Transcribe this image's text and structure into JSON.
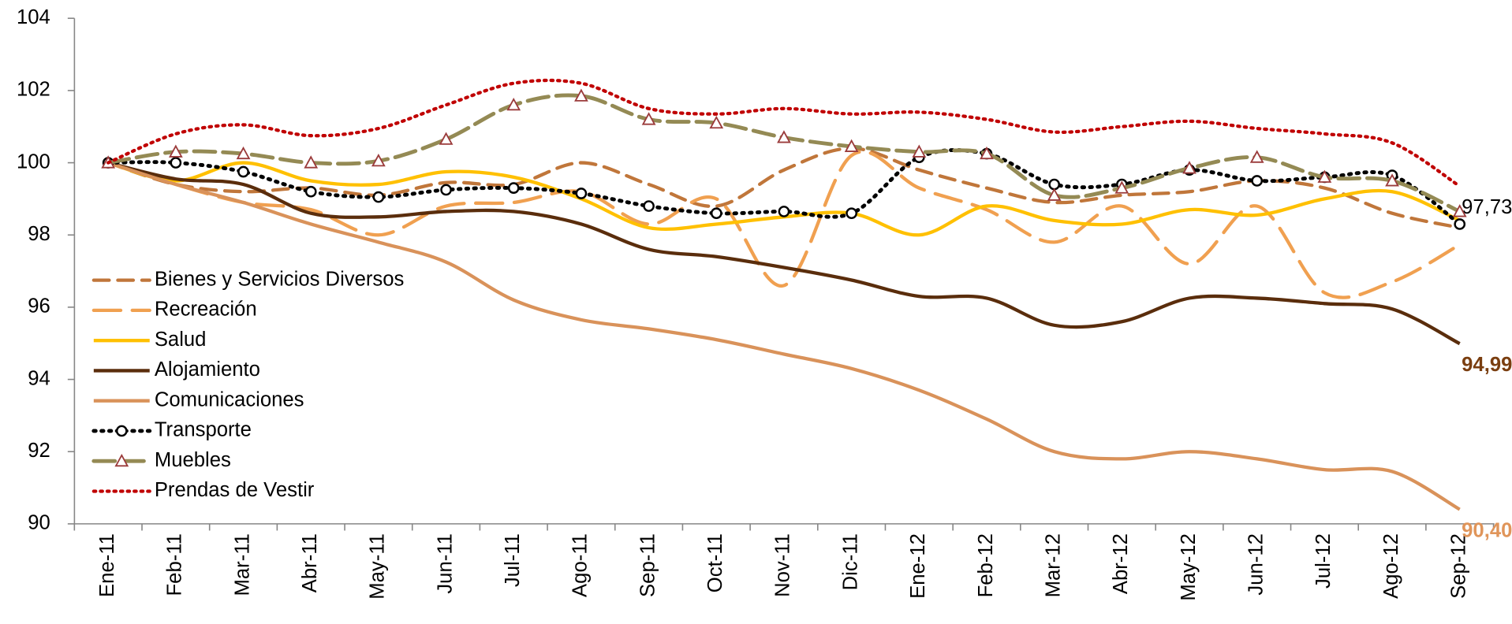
{
  "chart_data": {
    "type": "line",
    "categories": [
      "Ene-11",
      "Feb-11",
      "Mar-11",
      "Abr-11",
      "May-11",
      "Jun-11",
      "Jul-11",
      "Ago-11",
      "Sep-11",
      "Oct-11",
      "Nov-11",
      "Dic-11",
      "Ene-12",
      "Feb-12",
      "Mar-12",
      "Abr-12",
      "May-12",
      "Jun-12",
      "Jul-12",
      "Ago-12",
      "Sep-12"
    ],
    "ylim": [
      90,
      104
    ],
    "yticks": [
      90,
      92,
      94,
      96,
      98,
      100,
      102,
      104
    ],
    "legend": "left",
    "series": [
      {
        "name": "Bienes y Servicios Diversos",
        "color": "#c0763a",
        "dash": "16 9",
        "width": 3.5,
        "marker": "none",
        "values": [
          100,
          99.4,
          99.2,
          99.3,
          99.1,
          99.45,
          99.4,
          100.0,
          99.4,
          98.8,
          99.8,
          100.4,
          99.8,
          99.3,
          98.9,
          99.1,
          99.2,
          99.5,
          99.3,
          98.6,
          98.2
        ]
      },
      {
        "name": "Recreación",
        "color": "#f0a050",
        "dash": "28 12",
        "width": 3.5,
        "marker": "none",
        "values": [
          100,
          99.4,
          98.9,
          98.7,
          98.0,
          98.8,
          98.9,
          99.2,
          98.3,
          99.0,
          96.6,
          100.2,
          99.3,
          98.7,
          97.8,
          98.8,
          97.2,
          98.8,
          96.4,
          96.7,
          97.73
        ],
        "value_labels": [
          null,
          null,
          null,
          null,
          null,
          null,
          null,
          null,
          null,
          null,
          null,
          null,
          null,
          null,
          null,
          null,
          null,
          null,
          null,
          null,
          "97,73"
        ],
        "label_color": "#000000"
      },
      {
        "name": "Salud",
        "color": "#ffc000",
        "dash": "none",
        "width": 3.5,
        "marker": "none",
        "values": [
          100,
          99.5,
          100.0,
          99.5,
          99.4,
          99.75,
          99.6,
          99.0,
          98.2,
          98.3,
          98.5,
          98.6,
          98.0,
          98.8,
          98.4,
          98.3,
          98.7,
          98.55,
          99.0,
          99.2,
          98.4
        ]
      },
      {
        "name": "Alojamiento",
        "color": "#5a2d0c",
        "dash": "none",
        "width": 3.5,
        "marker": "none",
        "values": [
          100,
          99.55,
          99.4,
          98.6,
          98.5,
          98.65,
          98.65,
          98.3,
          97.6,
          97.4,
          97.1,
          96.75,
          96.3,
          96.25,
          95.5,
          95.6,
          96.25,
          96.25,
          96.1,
          95.95,
          94.99
        ],
        "value_labels": [
          null,
          null,
          null,
          null,
          null,
          null,
          null,
          null,
          null,
          null,
          null,
          null,
          null,
          null,
          null,
          null,
          null,
          null,
          null,
          null,
          "94,99"
        ],
        "label_color": "#7a3e10"
      },
      {
        "name": "Comunicaciones",
        "color": "#d9925a",
        "dash": "none",
        "width": 3.5,
        "marker": "none",
        "values": [
          100,
          99.4,
          98.9,
          98.3,
          97.8,
          97.25,
          96.2,
          95.65,
          95.4,
          95.1,
          94.7,
          94.3,
          93.7,
          92.9,
          92.0,
          91.8,
          92.0,
          91.8,
          91.5,
          91.45,
          90.4
        ],
        "value_labels": [
          null,
          null,
          null,
          null,
          null,
          null,
          null,
          null,
          null,
          null,
          null,
          null,
          null,
          null,
          null,
          null,
          null,
          null,
          null,
          null,
          "90,40"
        ],
        "label_color": "#e0955a"
      },
      {
        "name": "Transporte",
        "color": "#000000",
        "dash": "2 6",
        "width": 4,
        "marker": "circle",
        "values": [
          100,
          100.0,
          99.75,
          99.2,
          99.05,
          99.25,
          99.3,
          99.15,
          98.8,
          98.6,
          98.65,
          98.6,
          100.15,
          100.25,
          99.4,
          99.4,
          99.8,
          99.5,
          99.6,
          99.65,
          98.3
        ]
      },
      {
        "name": "Muebles",
        "color": "#948a54",
        "dash": "22 8",
        "width": 4,
        "marker": "triangle",
        "values": [
          100,
          100.3,
          100.25,
          100.0,
          100.05,
          100.65,
          101.6,
          101.85,
          101.2,
          101.1,
          100.7,
          100.45,
          100.3,
          100.25,
          99.1,
          99.3,
          99.85,
          100.15,
          99.6,
          99.5,
          98.65
        ]
      },
      {
        "name": "Prendas de Vestir",
        "color": "#c00000",
        "dash": "2 5",
        "width": 3.5,
        "marker": "none",
        "values": [
          100,
          100.8,
          101.05,
          100.75,
          100.95,
          101.6,
          102.2,
          102.2,
          101.5,
          101.35,
          101.5,
          101.35,
          101.4,
          101.2,
          100.85,
          101.0,
          101.15,
          100.95,
          100.8,
          100.55,
          99.35
        ]
      }
    ]
  }
}
